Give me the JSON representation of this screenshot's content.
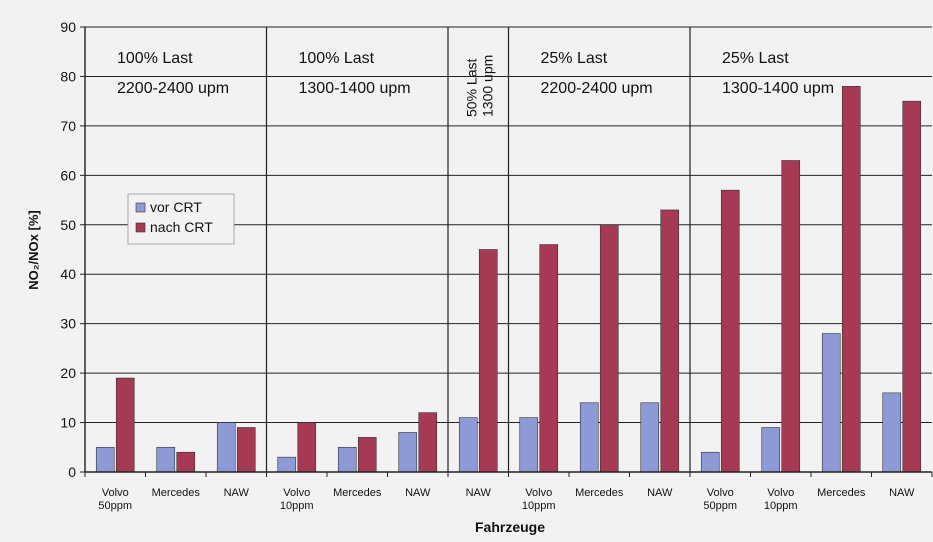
{
  "chart_data": {
    "type": "bar",
    "xlabel": "Fahrzeuge",
    "ylabel": "NO₂/NOx [%]",
    "ylim": [
      0,
      90
    ],
    "yticks": [
      0,
      10,
      20,
      30,
      40,
      50,
      60,
      70,
      80,
      90
    ],
    "grid": true,
    "legend_position": "left",
    "categories": [
      [
        "Volvo",
        "50ppm"
      ],
      [
        "Mercedes"
      ],
      [
        "NAW"
      ],
      [
        "Volvo",
        "10ppm"
      ],
      [
        "Mercedes"
      ],
      [
        "NAW"
      ],
      [
        "NAW"
      ],
      [
        "Volvo",
        "10ppm"
      ],
      [
        "Mercedes"
      ],
      [
        "NAW"
      ],
      [
        "Volvo",
        "50ppm"
      ],
      [
        "Volvo",
        "10ppm"
      ],
      [
        "Mercedes"
      ],
      [
        "NAW"
      ]
    ],
    "series": [
      {
        "name": "vor CRT",
        "color": "#8e9ad6",
        "values": [
          5,
          5,
          10,
          3,
          5,
          8,
          11,
          11,
          14,
          14,
          4,
          9,
          28,
          16
        ]
      },
      {
        "name": "nach CRT",
        "color": "#a63a55",
        "values": [
          19,
          4,
          9,
          10,
          7,
          12,
          45,
          46,
          50,
          53,
          57,
          63,
          78,
          75
        ]
      }
    ],
    "groups": [
      {
        "lines": [
          "100% Last",
          "2200-2400 upm"
        ],
        "start": 0,
        "end": 2
      },
      {
        "lines": [
          "100% Last",
          "1300-1400 upm"
        ],
        "start": 3,
        "end": 5
      },
      {
        "lines": [
          "50% Last",
          "1300 upm"
        ],
        "start": 6,
        "end": 6,
        "vertical": true
      },
      {
        "lines": [
          "25% Last",
          "2200-2400 upm"
        ],
        "start": 7,
        "end": 9
      },
      {
        "lines": [
          "25% Last",
          "1300-1400 upm"
        ],
        "start": 10,
        "end": 13
      }
    ]
  }
}
